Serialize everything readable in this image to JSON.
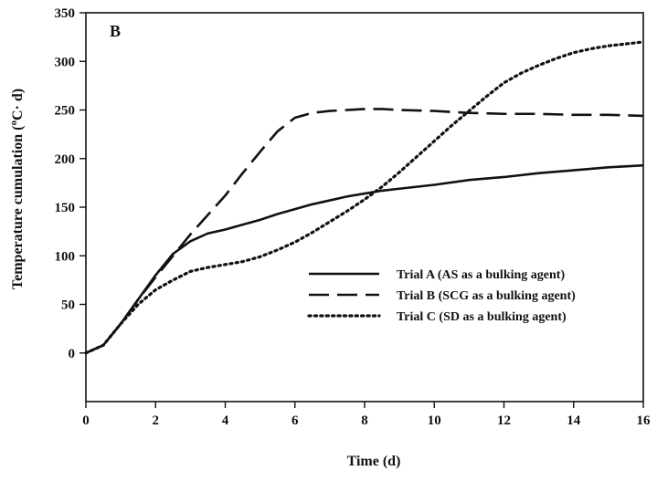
{
  "chart_data": {
    "type": "line",
    "panel_label": "B",
    "xlabel": "Time (d)",
    "ylabel": "Temperature cumulation (°C· d)",
    "ylabel_parts": {
      "before": "Temperature cumulation (",
      "sup": "o",
      "after": "C·  d)"
    },
    "xlim": [
      0,
      16
    ],
    "ylim": [
      -50,
      350
    ],
    "x_ticks": [
      0,
      2,
      4,
      6,
      8,
      10,
      12,
      14,
      16
    ],
    "y_ticks": [
      0,
      50,
      100,
      150,
      200,
      250,
      300,
      350
    ],
    "grid": false,
    "legend_position": "lower-right",
    "series": [
      {
        "name": "Trial A (AS as a bulking agent)",
        "style": "solid",
        "x": [
          0,
          0.5,
          1,
          1.5,
          2,
          2.5,
          3,
          3.5,
          4,
          4.5,
          5,
          5.5,
          6,
          6.5,
          7,
          7.5,
          8,
          8.5,
          9,
          9.5,
          10,
          11,
          12,
          13,
          14,
          15,
          16
        ],
        "y": [
          0,
          8,
          30,
          55,
          80,
          102,
          115,
          123,
          127,
          132,
          137,
          143,
          148,
          153,
          157,
          161,
          164,
          167,
          169,
          171,
          173,
          178,
          181,
          185,
          188,
          191,
          193
        ]
      },
      {
        "name": "Trial B (SCG as a bulking agent)",
        "style": "dashed",
        "x": [
          0,
          0.5,
          1,
          1.5,
          2,
          2.5,
          3,
          3.5,
          4,
          4.5,
          5,
          5.5,
          6,
          6.5,
          7,
          7.5,
          8,
          8.5,
          9,
          10,
          11,
          12,
          13,
          14,
          15,
          16
        ],
        "y": [
          0,
          8,
          30,
          55,
          78,
          100,
          122,
          142,
          162,
          185,
          207,
          228,
          242,
          247,
          249,
          250,
          251,
          251,
          250,
          249,
          247,
          246,
          246,
          245,
          245,
          244
        ]
      },
      {
        "name": "Trial C (SD as a bulking agent)",
        "style": "dotted",
        "x": [
          0,
          0.5,
          1,
          1.5,
          2,
          2.5,
          3,
          3.5,
          4,
          4.5,
          5,
          5.5,
          6,
          6.5,
          7,
          7.5,
          8,
          8.5,
          9,
          9.5,
          10,
          10.5,
          11,
          11.5,
          12,
          12.5,
          13,
          13.5,
          14,
          14.5,
          15,
          15.5,
          16
        ],
        "y": [
          0,
          8,
          30,
          50,
          65,
          75,
          84,
          88,
          91,
          94,
          99,
          106,
          114,
          124,
          135,
          146,
          158,
          171,
          186,
          202,
          218,
          234,
          249,
          264,
          278,
          288,
          296,
          303,
          309,
          313,
          316,
          318,
          320
        ]
      }
    ]
  }
}
